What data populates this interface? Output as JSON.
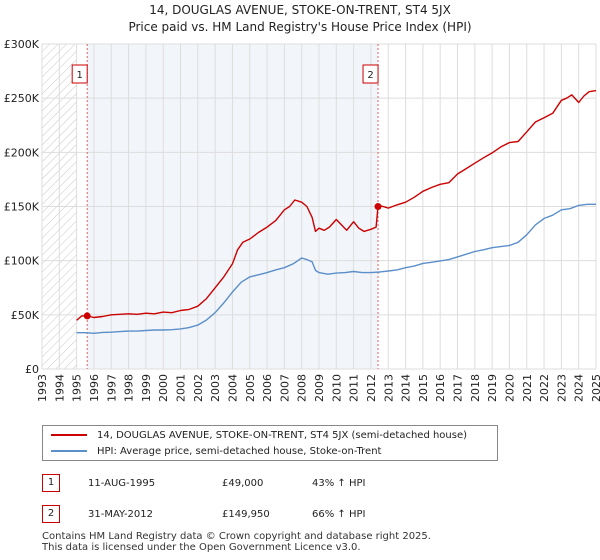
{
  "title_line1": "14, DOUGLAS AVENUE, STOKE-ON-TRENT, ST4 5JX",
  "title_line2": "Price paid vs. HM Land Registry's House Price Index (HPI)",
  "colors": {
    "property": "#cc0000",
    "hpi": "#5b8fc9",
    "marker_line": "#e06060",
    "grid": "#dddddd",
    "shade": "#dbe4f0"
  },
  "chart_data": {
    "type": "line",
    "title": "14, DOUGLAS AVENUE, STOKE-ON-TRENT, ST4 5JX — Price paid vs. HM Land Registry's House Price Index (HPI)",
    "xlabel": "",
    "ylabel": "",
    "xlim": [
      1993,
      2025
    ],
    "ylim": [
      0,
      300000
    ],
    "x_ticks": [
      "1993",
      "1994",
      "1995",
      "1996",
      "1997",
      "1998",
      "1999",
      "2000",
      "2001",
      "2002",
      "2003",
      "2004",
      "2005",
      "2006",
      "2007",
      "2008",
      "2009",
      "2010",
      "2011",
      "2012",
      "2013",
      "2014",
      "2015",
      "2016",
      "2017",
      "2018",
      "2019",
      "2020",
      "2021",
      "2022",
      "2023",
      "2024",
      "2025"
    ],
    "y_ticks": [
      {
        "value": 0,
        "label": "£0"
      },
      {
        "value": 50000,
        "label": "£50K"
      },
      {
        "value": 100000,
        "label": "£100K"
      },
      {
        "value": 150000,
        "label": "£150K"
      },
      {
        "value": 200000,
        "label": "£200K"
      },
      {
        "value": 250000,
        "label": "£250K"
      },
      {
        "value": 300000,
        "label": "£300K"
      }
    ],
    "grid": true,
    "hatched_before": 1995,
    "series": [
      {
        "name": "14, DOUGLAS AVENUE, STOKE-ON-TRENT, ST4 5JX (semi-detached house)",
        "color": "#cc0000",
        "x": [
          1995.0,
          1995.3,
          1995.61,
          1996.0,
          1996.5,
          1997.0,
          1997.5,
          1998.0,
          1998.5,
          1999.0,
          1999.5,
          2000.0,
          2000.5,
          2001.0,
          2001.5,
          2002.0,
          2002.5,
          2003.0,
          2003.5,
          2004.0,
          2004.3,
          2004.6,
          2005.0,
          2005.5,
          2006.0,
          2006.5,
          2007.0,
          2007.3,
          2007.6,
          2008.0,
          2008.3,
          2008.6,
          2008.8,
          2009.0,
          2009.3,
          2009.6,
          2010.0,
          2010.3,
          2010.6,
          2011.0,
          2011.3,
          2011.6,
          2012.0,
          2012.3,
          2012.41,
          2012.6,
          2013.0,
          2013.5,
          2014.0,
          2014.5,
          2015.0,
          2015.5,
          2016.0,
          2016.5,
          2017.0,
          2017.5,
          2018.0,
          2018.5,
          2019.0,
          2019.5,
          2020.0,
          2020.5,
          2021.0,
          2021.5,
          2022.0,
          2022.5,
          2023.0,
          2023.3,
          2023.6,
          2024.0,
          2024.3,
          2024.6,
          2025.0
        ],
        "values": [
          45000,
          49000,
          49000,
          47500,
          48500,
          50000,
          50500,
          51000,
          50500,
          51500,
          51000,
          52500,
          52000,
          54000,
          55000,
          58000,
          65000,
          75000,
          85000,
          97000,
          110000,
          117000,
          120000,
          126000,
          131000,
          137000,
          147000,
          150000,
          156000,
          154000,
          150000,
          140000,
          127000,
          130000,
          128000,
          131000,
          138000,
          133000,
          128000,
          136000,
          130000,
          127000,
          129000,
          131000,
          149950,
          150500,
          148500,
          151500,
          154000,
          158500,
          164000,
          167500,
          170500,
          172000,
          180000,
          185000,
          190000,
          195000,
          199500,
          205000,
          209000,
          210000,
          219000,
          228000,
          232000,
          236000,
          248000,
          250000,
          253000,
          246000,
          252000,
          256000,
          257000
        ]
      },
      {
        "name": "HPI: Average price, semi-detached house, Stoke-on-Trent",
        "color": "#5b8fc9",
        "x": [
          1995.0,
          1995.5,
          1996.0,
          1996.5,
          1997.0,
          1997.5,
          1998.0,
          1998.5,
          1999.0,
          1999.5,
          2000.0,
          2000.5,
          2001.0,
          2001.5,
          2002.0,
          2002.5,
          2003.0,
          2003.5,
          2004.0,
          2004.5,
          2005.0,
          2005.5,
          2006.0,
          2006.5,
          2007.0,
          2007.5,
          2008.0,
          2008.3,
          2008.6,
          2008.8,
          2009.0,
          2009.5,
          2010.0,
          2010.5,
          2011.0,
          2011.5,
          2012.0,
          2012.5,
          2013.0,
          2013.5,
          2014.0,
          2014.5,
          2015.0,
          2015.5,
          2016.0,
          2016.5,
          2017.0,
          2017.5,
          2018.0,
          2018.5,
          2019.0,
          2019.5,
          2020.0,
          2020.5,
          2021.0,
          2021.5,
          2022.0,
          2022.5,
          2023.0,
          2023.5,
          2024.0,
          2024.5,
          2025.0
        ],
        "values": [
          33500,
          33500,
          33000,
          33800,
          34000,
          34500,
          35000,
          35000,
          35500,
          36000,
          36000,
          36300,
          37000,
          38200,
          40500,
          45200,
          52000,
          61000,
          71000,
          80000,
          85000,
          87000,
          89000,
          91500,
          93500,
          97000,
          102500,
          101000,
          99000,
          91000,
          89000,
          87500,
          88500,
          89000,
          90000,
          89000,
          89000,
          89500,
          90500,
          91500,
          93500,
          95000,
          97500,
          98500,
          99800,
          101000,
          103500,
          106000,
          108500,
          110000,
          112000,
          113000,
          114000,
          117000,
          124000,
          133000,
          139000,
          142000,
          147000,
          148000,
          151000,
          152000,
          152000
        ]
      }
    ],
    "markers": [
      {
        "label": "1",
        "x": 1995.61,
        "y": 49000
      },
      {
        "label": "2",
        "x": 2012.41,
        "y": 149950
      }
    ]
  },
  "legend": {
    "property": "14, DOUGLAS AVENUE, STOKE-ON-TRENT, ST4 5JX (semi-detached house)",
    "hpi": "HPI: Average price, semi-detached house, Stoke-on-Trent"
  },
  "transactions": [
    {
      "num": "1",
      "date": "11-AUG-1995",
      "price": "£49,000",
      "hpi": "43% ↑ HPI"
    },
    {
      "num": "2",
      "date": "31-MAY-2012",
      "price": "£149,950",
      "hpi": "66% ↑ HPI"
    }
  ],
  "footer_line1": "Contains HM Land Registry data © Crown copyright and database right 2025.",
  "footer_line2": "This data is licensed under the Open Government Licence v3.0."
}
